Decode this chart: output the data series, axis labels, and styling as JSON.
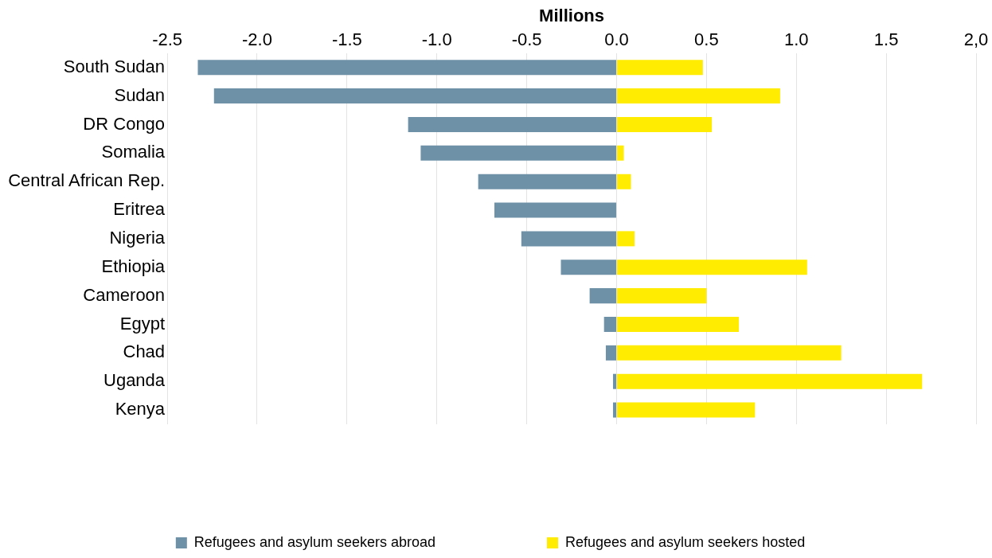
{
  "chart_data": {
    "type": "bar",
    "orientation": "horizontal",
    "stacked": true,
    "xlabel": "Millions",
    "categories": [
      "South Sudan",
      "Sudan",
      "DR Congo",
      "Somalia",
      "Central African Rep.",
      "Eritrea",
      "Nigeria",
      "Ethiopia",
      "Cameroon",
      "Egypt",
      "Chad",
      "Uganda",
      "Kenya"
    ],
    "series": [
      {
        "name": "Refugees and asylum seekers abroad",
        "color": "#6f91a8",
        "values": [
          -2.33,
          -2.24,
          -1.16,
          -1.09,
          -0.77,
          -0.68,
          -0.53,
          -0.31,
          -0.15,
          -0.07,
          -0.06,
          -0.02,
          -0.02
        ]
      },
      {
        "name": "Refugees and asylum seekers hosted",
        "color": "#ffec00",
        "values": [
          0.48,
          0.91,
          0.53,
          0.04,
          0.08,
          0,
          0.1,
          1.06,
          0.5,
          0.68,
          1.25,
          1.7,
          0.77
        ]
      }
    ],
    "xlim": [
      -2.5,
      2
    ],
    "xticks": [
      {
        "value": -2.5,
        "label": "-2.5"
      },
      {
        "value": -2,
        "label": "-2.0"
      },
      {
        "value": -1.5,
        "label": "-1.5"
      },
      {
        "value": -1,
        "label": "-1.0"
      },
      {
        "value": -0.5,
        "label": "-0.5"
      },
      {
        "value": 0,
        "label": "0.0"
      },
      {
        "value": 0.5,
        "label": "0.5"
      },
      {
        "value": 1,
        "label": "1.0"
      },
      {
        "value": 1.5,
        "label": "1.5"
      },
      {
        "value": 2,
        "label": "2,0"
      }
    ],
    "grid": "x",
    "legend": "bottom"
  }
}
